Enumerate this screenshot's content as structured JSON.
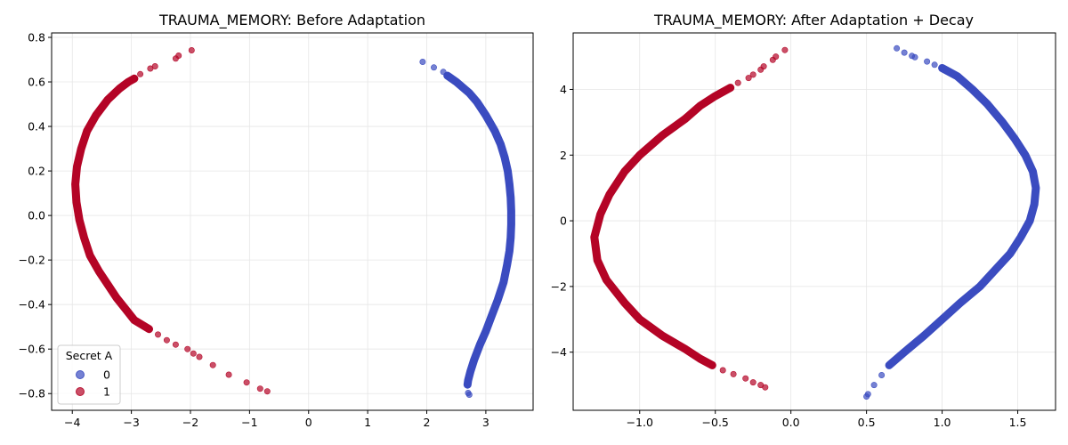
{
  "colors": {
    "class0": "#3b4cc0",
    "class1": "#b40426",
    "grid": "#e6e6e6",
    "axis": "#000000"
  },
  "chart_data": [
    {
      "type": "scatter",
      "title": "TRAUMA_MEMORY: Before Adaptation",
      "xlabel": "",
      "ylabel": "",
      "xlim": [
        -4.35,
        3.8
      ],
      "ylim": [
        -0.875,
        0.82
      ],
      "xticks": [
        -4,
        -3,
        -2,
        -1,
        0,
        1,
        2,
        3
      ],
      "xtick_labels": [
        "−4",
        "−3",
        "−2",
        "−1",
        "0",
        "1",
        "2",
        "3"
      ],
      "yticks": [
        -0.8,
        -0.6,
        -0.4,
        -0.2,
        0.0,
        0.2,
        0.4,
        0.6,
        0.8
      ],
      "ytick_labels": [
        "−0.8",
        "−0.6",
        "−0.4",
        "−0.2",
        "0.0",
        "0.2",
        "0.4",
        "0.6",
        "0.8"
      ],
      "grid": true,
      "legend": {
        "title": "Secret A",
        "location": "lower-left",
        "entries": [
          "0",
          "1"
        ]
      },
      "series": [
        {
          "name": "0",
          "color_key": "class0",
          "points": [
            [
              1.93,
              0.69
            ],
            [
              2.12,
              0.665
            ],
            [
              2.28,
              0.645
            ],
            [
              2.35,
              0.628
            ],
            [
              2.5,
              0.6
            ],
            [
              2.6,
              0.575
            ],
            [
              2.72,
              0.55
            ],
            [
              2.85,
              0.51
            ],
            [
              3.0,
              0.45
            ],
            [
              3.15,
              0.38
            ],
            [
              3.25,
              0.32
            ],
            [
              3.32,
              0.26
            ],
            [
              3.37,
              0.2
            ],
            [
              3.4,
              0.14
            ],
            [
              3.42,
              0.08
            ],
            [
              3.43,
              0.02
            ],
            [
              3.43,
              -0.04
            ],
            [
              3.42,
              -0.1
            ],
            [
              3.4,
              -0.16
            ],
            [
              3.36,
              -0.22
            ],
            [
              3.3,
              -0.3
            ],
            [
              3.2,
              -0.38
            ],
            [
              3.1,
              -0.45
            ],
            [
              3.0,
              -0.52
            ],
            [
              2.9,
              -0.58
            ],
            [
              2.8,
              -0.65
            ],
            [
              2.74,
              -0.7
            ],
            [
              2.7,
              -0.74
            ],
            [
              2.69,
              -0.76
            ],
            [
              2.7,
              -0.797
            ],
            [
              2.72,
              -0.805
            ]
          ],
          "curve": [
            [
              2.35,
              0.628
            ],
            [
              2.5,
              0.6
            ],
            [
              2.72,
              0.55
            ],
            [
              2.85,
              0.51
            ],
            [
              3.0,
              0.45
            ],
            [
              3.15,
              0.38
            ],
            [
              3.25,
              0.32
            ],
            [
              3.32,
              0.26
            ],
            [
              3.37,
              0.2
            ],
            [
              3.4,
              0.14
            ],
            [
              3.42,
              0.08
            ],
            [
              3.43,
              0.02
            ],
            [
              3.43,
              -0.04
            ],
            [
              3.42,
              -0.1
            ],
            [
              3.4,
              -0.16
            ],
            [
              3.36,
              -0.22
            ],
            [
              3.3,
              -0.3
            ],
            [
              3.2,
              -0.38
            ],
            [
              3.1,
              -0.45
            ],
            [
              3.0,
              -0.52
            ],
            [
              2.9,
              -0.58
            ],
            [
              2.8,
              -0.65
            ],
            [
              2.74,
              -0.7
            ],
            [
              2.7,
              -0.74
            ],
            [
              2.69,
              -0.76
            ]
          ]
        },
        {
          "name": "1",
          "color_key": "class1",
          "points": [
            [
              -1.98,
              0.742
            ],
            [
              -2.2,
              0.718
            ],
            [
              -2.25,
              0.705
            ],
            [
              -2.6,
              0.67
            ],
            [
              -2.68,
              0.66
            ],
            [
              -2.85,
              0.635
            ],
            [
              -2.95,
              0.615
            ],
            [
              -3.05,
              0.6
            ],
            [
              -3.2,
              0.57
            ],
            [
              -3.4,
              0.52
            ],
            [
              -3.6,
              0.45
            ],
            [
              -3.75,
              0.38
            ],
            [
              -3.85,
              0.3
            ],
            [
              -3.92,
              0.22
            ],
            [
              -3.95,
              0.14
            ],
            [
              -3.93,
              0.06
            ],
            [
              -3.88,
              -0.02
            ],
            [
              -3.8,
              -0.1
            ],
            [
              -3.7,
              -0.18
            ],
            [
              -3.55,
              -0.25
            ],
            [
              -3.4,
              -0.31
            ],
            [
              -3.25,
              -0.37
            ],
            [
              -3.1,
              -0.42
            ],
            [
              -2.95,
              -0.47
            ],
            [
              -2.7,
              -0.51
            ],
            [
              -2.55,
              -0.535
            ],
            [
              -2.4,
              -0.56
            ],
            [
              -2.25,
              -0.58
            ],
            [
              -2.05,
              -0.6
            ],
            [
              -1.95,
              -0.62
            ],
            [
              -1.85,
              -0.635
            ],
            [
              -1.62,
              -0.672
            ],
            [
              -1.35,
              -0.715
            ],
            [
              -1.05,
              -0.75
            ],
            [
              -0.82,
              -0.778
            ],
            [
              -0.7,
              -0.79
            ]
          ],
          "curve": [
            [
              -2.95,
              0.615
            ],
            [
              -3.05,
              0.6
            ],
            [
              -3.2,
              0.57
            ],
            [
              -3.4,
              0.52
            ],
            [
              -3.6,
              0.45
            ],
            [
              -3.75,
              0.38
            ],
            [
              -3.85,
              0.3
            ],
            [
              -3.92,
              0.22
            ],
            [
              -3.95,
              0.14
            ],
            [
              -3.93,
              0.06
            ],
            [
              -3.88,
              -0.02
            ],
            [
              -3.8,
              -0.1
            ],
            [
              -3.7,
              -0.18
            ],
            [
              -3.55,
              -0.25
            ],
            [
              -3.4,
              -0.31
            ],
            [
              -3.25,
              -0.37
            ],
            [
              -3.1,
              -0.42
            ],
            [
              -2.95,
              -0.47
            ],
            [
              -2.7,
              -0.51
            ]
          ]
        }
      ]
    },
    {
      "type": "scatter",
      "title": "TRAUMA_MEMORY: After Adaptation + Decay",
      "xlabel": "",
      "ylabel": "",
      "xlim": [
        -1.44,
        1.75
      ],
      "ylim": [
        -5.77,
        5.72
      ],
      "xticks": [
        -1.0,
        -0.5,
        0.0,
        0.5,
        1.0,
        1.5
      ],
      "xtick_labels": [
        "−1.0",
        "−0.5",
        "0.0",
        "0.5",
        "1.0",
        "1.5"
      ],
      "yticks": [
        -4,
        -2,
        0,
        2,
        4
      ],
      "ytick_labels": [
        "−4",
        "−2",
        "0",
        "2",
        "4"
      ],
      "grid": true,
      "legend": null,
      "series": [
        {
          "name": "0",
          "color_key": "class0",
          "points": [
            [
              0.7,
              5.25
            ],
            [
              0.75,
              5.12
            ],
            [
              0.8,
              5.02
            ],
            [
              0.82,
              4.98
            ],
            [
              0.9,
              4.85
            ],
            [
              0.95,
              4.75
            ],
            [
              1.0,
              4.65
            ],
            [
              1.1,
              4.4
            ],
            [
              1.2,
              4.0
            ],
            [
              1.3,
              3.55
            ],
            [
              1.4,
              3.0
            ],
            [
              1.48,
              2.5
            ],
            [
              1.55,
              2.0
            ],
            [
              1.6,
              1.5
            ],
            [
              1.62,
              1.0
            ],
            [
              1.61,
              0.5
            ],
            [
              1.58,
              0.0
            ],
            [
              1.52,
              -0.5
            ],
            [
              1.45,
              -1.0
            ],
            [
              1.35,
              -1.5
            ],
            [
              1.25,
              -2.0
            ],
            [
              1.12,
              -2.5
            ],
            [
              1.0,
              -3.0
            ],
            [
              0.88,
              -3.5
            ],
            [
              0.75,
              -4.0
            ],
            [
              0.65,
              -4.4
            ],
            [
              0.6,
              -4.7
            ],
            [
              0.55,
              -5.0
            ],
            [
              0.51,
              -5.28
            ],
            [
              0.5,
              -5.35
            ]
          ],
          "curve": [
            [
              1.0,
              4.65
            ],
            [
              1.1,
              4.4
            ],
            [
              1.2,
              4.0
            ],
            [
              1.3,
              3.55
            ],
            [
              1.4,
              3.0
            ],
            [
              1.48,
              2.5
            ],
            [
              1.55,
              2.0
            ],
            [
              1.6,
              1.5
            ],
            [
              1.62,
              1.0
            ],
            [
              1.61,
              0.5
            ],
            [
              1.58,
              0.0
            ],
            [
              1.52,
              -0.5
            ],
            [
              1.45,
              -1.0
            ],
            [
              1.35,
              -1.5
            ],
            [
              1.25,
              -2.0
            ],
            [
              1.12,
              -2.5
            ],
            [
              1.0,
              -3.0
            ],
            [
              0.88,
              -3.5
            ],
            [
              0.75,
              -4.0
            ],
            [
              0.65,
              -4.4
            ]
          ]
        },
        {
          "name": "1",
          "color_key": "class1",
          "points": [
            [
              -0.04,
              5.2
            ],
            [
              -0.1,
              5.0
            ],
            [
              -0.12,
              4.9
            ],
            [
              -0.18,
              4.7
            ],
            [
              -0.2,
              4.6
            ],
            [
              -0.25,
              4.45
            ],
            [
              -0.28,
              4.35
            ],
            [
              -0.35,
              4.2
            ],
            [
              -0.4,
              4.05
            ],
            [
              -0.5,
              3.8
            ],
            [
              -0.6,
              3.5
            ],
            [
              -0.7,
              3.1
            ],
            [
              -0.85,
              2.6
            ],
            [
              -1.0,
              2.0
            ],
            [
              -1.1,
              1.5
            ],
            [
              -1.2,
              0.8
            ],
            [
              -1.26,
              0.2
            ],
            [
              -1.3,
              -0.5
            ],
            [
              -1.28,
              -1.2
            ],
            [
              -1.22,
              -1.8
            ],
            [
              -1.1,
              -2.5
            ],
            [
              -1.0,
              -3.0
            ],
            [
              -0.85,
              -3.5
            ],
            [
              -0.7,
              -3.9
            ],
            [
              -0.6,
              -4.2
            ],
            [
              -0.52,
              -4.4
            ],
            [
              -0.45,
              -4.55
            ],
            [
              -0.38,
              -4.67
            ],
            [
              -0.3,
              -4.8
            ],
            [
              -0.25,
              -4.92
            ],
            [
              -0.2,
              -5.0
            ],
            [
              -0.17,
              -5.07
            ]
          ],
          "curve": [
            [
              -0.4,
              4.05
            ],
            [
              -0.5,
              3.8
            ],
            [
              -0.6,
              3.5
            ],
            [
              -0.7,
              3.1
            ],
            [
              -0.85,
              2.6
            ],
            [
              -1.0,
              2.0
            ],
            [
              -1.1,
              1.5
            ],
            [
              -1.2,
              0.8
            ],
            [
              -1.26,
              0.2
            ],
            [
              -1.3,
              -0.5
            ],
            [
              -1.28,
              -1.2
            ],
            [
              -1.22,
              -1.8
            ],
            [
              -1.1,
              -2.5
            ],
            [
              -1.0,
              -3.0
            ],
            [
              -0.85,
              -3.5
            ],
            [
              -0.7,
              -3.9
            ],
            [
              -0.6,
              -4.2
            ],
            [
              -0.52,
              -4.4
            ]
          ]
        }
      ]
    }
  ]
}
